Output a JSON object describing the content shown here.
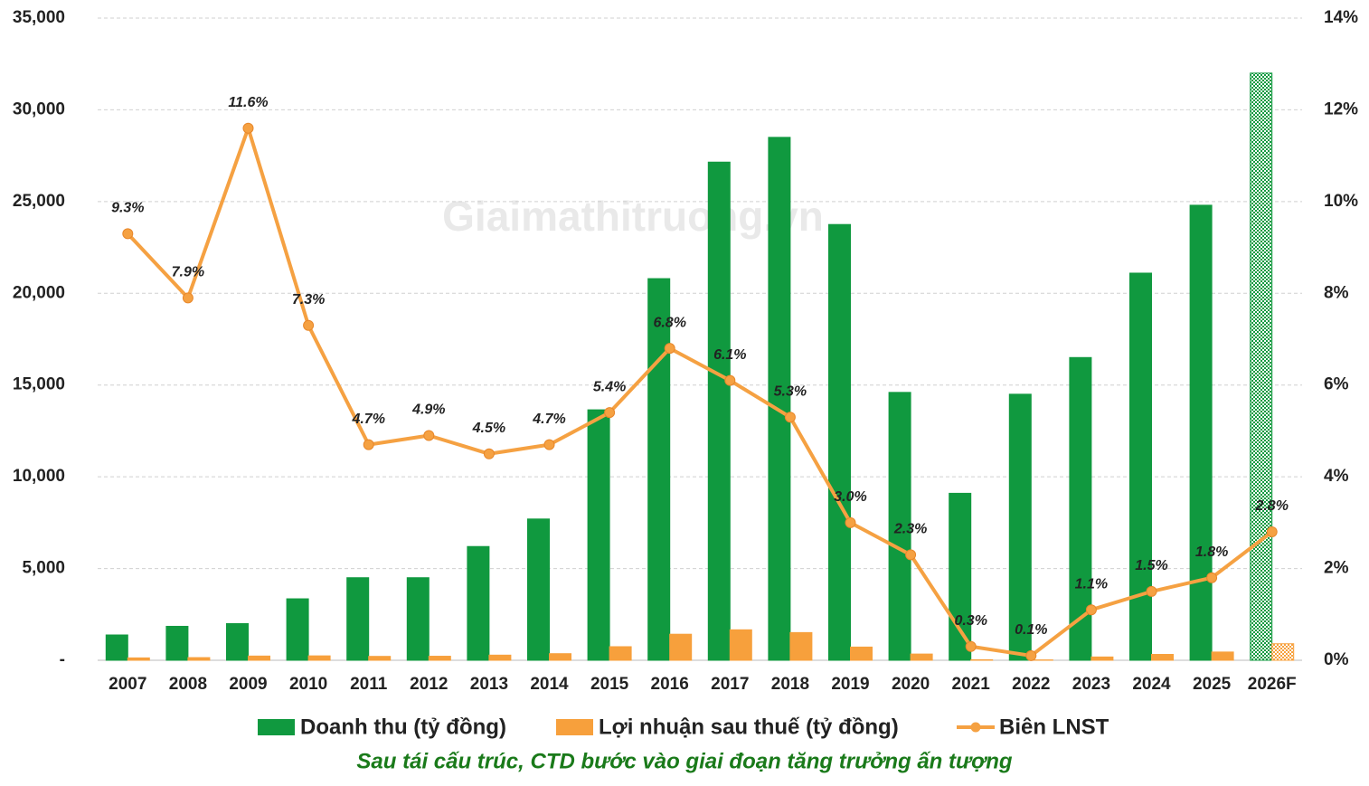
{
  "chart_data": {
    "type": "bar",
    "watermark": "Giaimathitruong.vn",
    "caption": "Sau tái cấu trúc, CTD bước vào giai đoạn tăng trưởng ấn tượng",
    "caption_color": "#1a7a1a",
    "categories": [
      "2007",
      "2008",
      "2009",
      "2010",
      "2011",
      "2012",
      "2013",
      "2014",
      "2015",
      "2016",
      "2017",
      "2018",
      "2019",
      "2020",
      "2021",
      "2022",
      "2023",
      "2024",
      "2025",
      "2026F"
    ],
    "hatched_categories": [
      "2026F"
    ],
    "grid": true,
    "ylim": [
      0,
      35000
    ],
    "yticks": [
      {
        "value": 0,
        "label": "-"
      },
      {
        "value": 5000,
        "label": "5,000"
      },
      {
        "value": 10000,
        "label": "10,000"
      },
      {
        "value": 15000,
        "label": "15,000"
      },
      {
        "value": 20000,
        "label": "20,000"
      },
      {
        "value": 25000,
        "label": "25,000"
      },
      {
        "value": 30000,
        "label": "30,000"
      },
      {
        "value": 35000,
        "label": "35,000"
      }
    ],
    "y2lim": [
      0,
      14
    ],
    "y2ticks": [
      {
        "value": 0,
        "label": "0%"
      },
      {
        "value": 2,
        "label": "2%"
      },
      {
        "value": 4,
        "label": "4%"
      },
      {
        "value": 6,
        "label": "6%"
      },
      {
        "value": 8,
        "label": "8%"
      },
      {
        "value": 10,
        "label": "10%"
      },
      {
        "value": 12,
        "label": "12%"
      },
      {
        "value": 14,
        "label": "14%"
      }
    ],
    "series": [
      {
        "name": "Doanh thu (tỷ đồng)",
        "type": "bar",
        "color": "#10993f",
        "values": [
          1380,
          1850,
          2000,
          3350,
          4500,
          4500,
          6200,
          7700,
          13650,
          20800,
          27150,
          28500,
          23750,
          14600,
          9100,
          14500,
          16500,
          21100,
          24800,
          32000
        ]
      },
      {
        "name": "Lợi nhuận sau thuế (tỷ đồng)",
        "type": "bar",
        "color": "#f7a03c",
        "values": [
          130,
          145,
          230,
          240,
          212,
          220,
          280,
          360,
          740,
          1420,
          1660,
          1510,
          720,
          340,
          30,
          20,
          180,
          320,
          450,
          900
        ]
      },
      {
        "name": "Biên LNST",
        "type": "line",
        "axis": "y2",
        "color": "#f5a142",
        "values": [
          9.3,
          7.9,
          11.6,
          7.3,
          4.7,
          4.9,
          4.5,
          4.7,
          5.4,
          6.8,
          6.1,
          5.3,
          3.0,
          2.3,
          0.3,
          0.1,
          1.1,
          1.5,
          1.8,
          2.8
        ],
        "value_labels": [
          "9.3%",
          "7.9%",
          "11.6%",
          "7.3%",
          "4.7%",
          "4.9%",
          "4.5%",
          "4.7%",
          "5.4%",
          "6.8%",
          "6.1%",
          "5.3%",
          "3.0%",
          "2.3%",
          "0.3%",
          "0.1%",
          "1.1%",
          "1.5%",
          "1.8%",
          "2.8%"
        ]
      }
    ]
  }
}
